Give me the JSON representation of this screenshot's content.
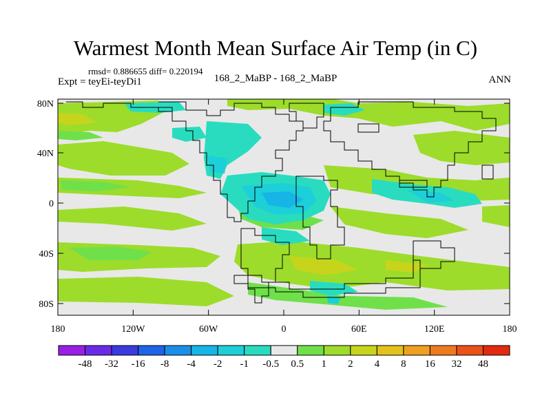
{
  "title": "Warmest Month Mean Surface Air Temp (in C)",
  "stats": "rmsd= 0.886655 diff= 0.220194",
  "expt": "Expt = teyEi-teyDi1",
  "center_label": "168_2_MaBP - 168_2_MaBP",
  "season": "ANN",
  "y_ticks": [
    "80N",
    "40N",
    "0",
    "40S",
    "80S"
  ],
  "x_ticks": [
    "180",
    "120W",
    "60W",
    "0",
    "60E",
    "120E",
    "180"
  ],
  "colorbar": {
    "labels": [
      "-48",
      "-32",
      "-16",
      "-8",
      "-4",
      "-2",
      "-1",
      "-0.5",
      "0.5",
      "1",
      "2",
      "4",
      "8",
      "16",
      "32",
      "48"
    ],
    "colors": [
      "#9a1fe6",
      "#6a2be8",
      "#3b3be0",
      "#1f63e6",
      "#1990e8",
      "#17b4e6",
      "#1ccfd8",
      "#29dcc0",
      "#e8e8e8",
      "#6fe04a",
      "#9ddc2a",
      "#c7d41c",
      "#e3c21c",
      "#eea11e",
      "#ee7a1f",
      "#ea5218",
      "#e22a10"
    ]
  },
  "map_colors": {
    "neutral": "#e8e8e8",
    "warm1": "#6fe04a",
    "warm2": "#9ddc2a",
    "warm3": "#c7d41c",
    "cool1": "#29dcc0",
    "cool2": "#1ccfd8",
    "cool3": "#17b4e6"
  }
}
